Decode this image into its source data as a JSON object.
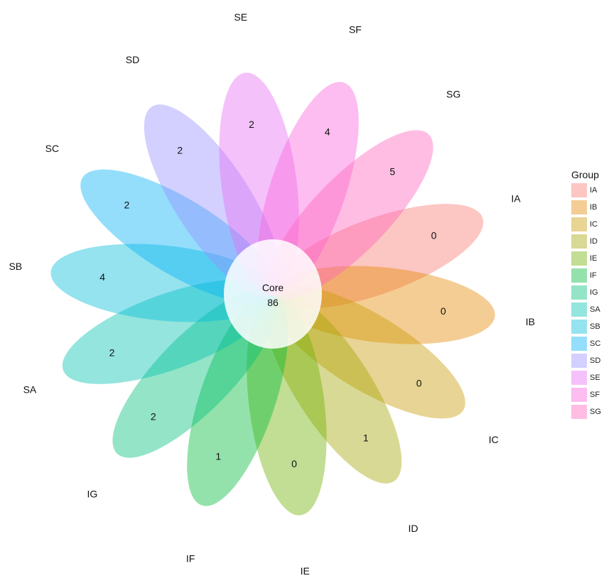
{
  "diagram": {
    "type": "flower-venn",
    "core": {
      "label": "Core",
      "value": "86"
    },
    "petals": [
      {
        "group": "IA",
        "count": "0",
        "color": "#F8766D"
      },
      {
        "group": "IB",
        "count": "0",
        "color": "#E58700"
      },
      {
        "group": "IC",
        "count": "0",
        "color": "#C99800"
      },
      {
        "group": "ID",
        "count": "1",
        "color": "#A3A500"
      },
      {
        "group": "IE",
        "count": "0",
        "color": "#6BB100"
      },
      {
        "group": "IF",
        "count": "1",
        "color": "#00BA38"
      },
      {
        "group": "IG",
        "count": "2",
        "color": "#00BF7D"
      },
      {
        "group": "SA",
        "count": "2",
        "color": "#00C0AF"
      },
      {
        "group": "SB",
        "count": "4",
        "color": "#00BCD8"
      },
      {
        "group": "SC",
        "count": "2",
        "color": "#00B0F6"
      },
      {
        "group": "SD",
        "count": "2",
        "color": "#9590FF"
      },
      {
        "group": "SE",
        "count": "2",
        "color": "#E76BF3"
      },
      {
        "group": "SF",
        "count": "4",
        "color": "#FA62DB"
      },
      {
        "group": "SG",
        "count": "5",
        "color": "#FF62BC"
      }
    ]
  },
  "legend": {
    "title": "Group",
    "items": [
      "IA",
      "IB",
      "IC",
      "ID",
      "IE",
      "IF",
      "IG",
      "SA",
      "SB",
      "SC",
      "SD",
      "SE",
      "SF",
      "SG"
    ]
  }
}
